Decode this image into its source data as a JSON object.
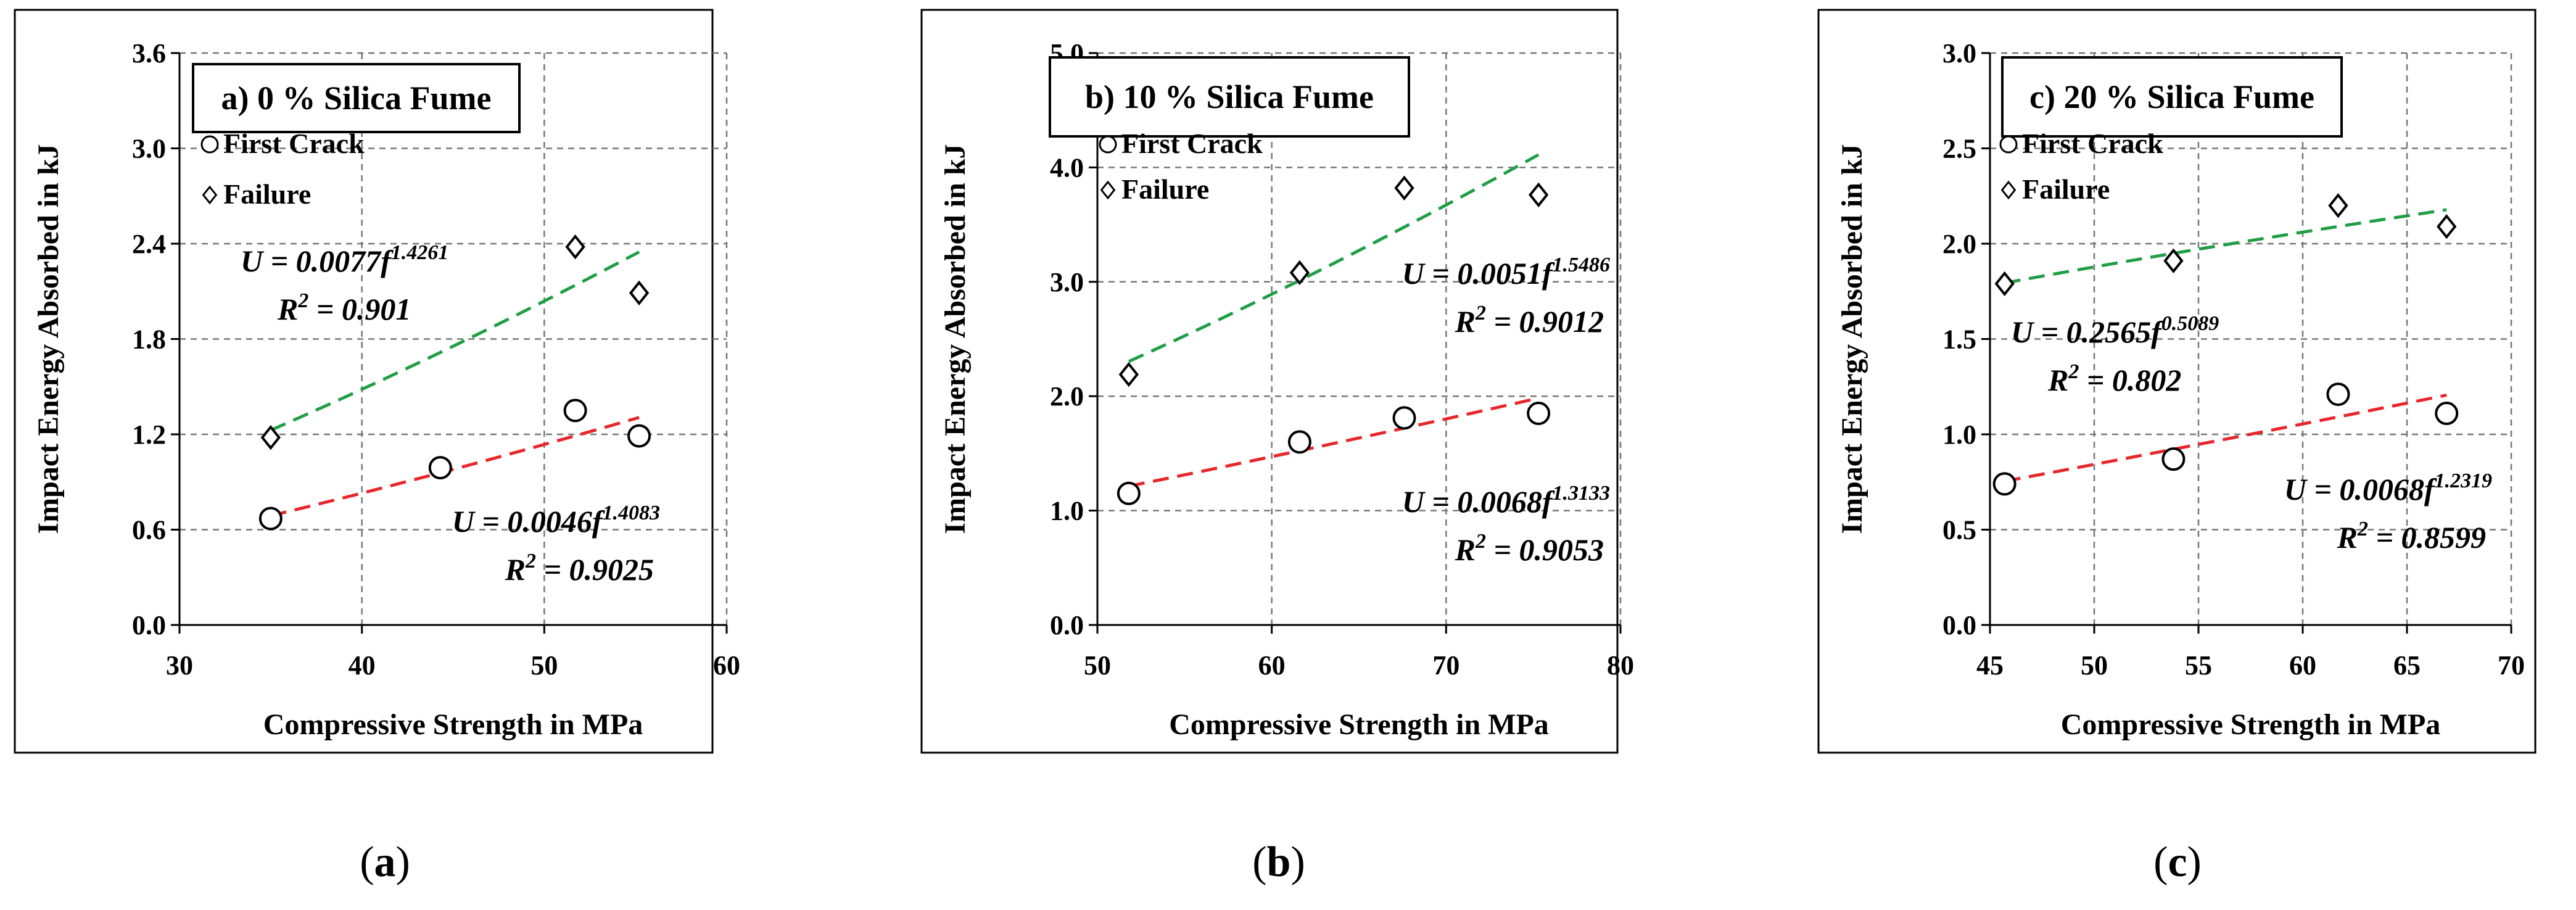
{
  "chart_data": [
    {
      "type": "scatter",
      "title": "a) 0 % Silica Fume",
      "caption": {
        "open": "(",
        "letter": "a",
        "close": ")"
      },
      "xlabel": "Compressive Strength in MPa",
      "ylabel": "Impact Energy Absorbed in kJ",
      "xlim": [
        30,
        60
      ],
      "ylim": [
        0,
        3.6
      ],
      "xticks": [
        "30",
        "40",
        "50",
        "60"
      ],
      "yticks": [
        "0.0",
        "0.6",
        "1.2",
        "1.8",
        "2.4",
        "3.0",
        "3.6"
      ],
      "grid": true,
      "legend_position": "top-left",
      "series": [
        {
          "name": "First Crack",
          "marker": "circle",
          "trend_color": "#e8262a",
          "x": [
            35,
            44.3,
            51.7,
            55.2
          ],
          "y": [
            0.67,
            0.99,
            1.35,
            1.19
          ],
          "trend": {
            "coef": 0.0046,
            "exp": 1.4083,
            "x_range": [
              35,
              55.2
            ],
            "equation": {
              "lhs": "U = 0.0046f",
              "exp": "1.4083",
              "r2_label": "R",
              "r2_sup": "2",
              "r2_value": " = 0.9025"
            }
          }
        },
        {
          "name": "Failure",
          "marker": "diamond",
          "trend_color": "#1f9e45",
          "x": [
            35,
            51.7,
            55.2
          ],
          "y": [
            1.18,
            2.38,
            2.09
          ],
          "trend": {
            "coef": 0.0077,
            "exp": 1.4261,
            "x_range": [
              35,
              55.2
            ],
            "equation": {
              "lhs": "U = 0.0077f",
              "exp": "1.4261",
              "r2_label": "R",
              "r2_sup": "2",
              "r2_value": " = 0.901"
            }
          }
        }
      ]
    },
    {
      "type": "scatter",
      "title": "b) 10 % Silica Fume",
      "caption": {
        "open": "(",
        "letter": "b",
        "close": ")"
      },
      "xlabel": "Compressive Strength in MPa",
      "ylabel": "Impact Energy Absorbed in kJ",
      "xlim": [
        50,
        80
      ],
      "ylim": [
        0,
        5.0
      ],
      "xticks": [
        "50",
        "60",
        "70",
        "80"
      ],
      "yticks": [
        "0.0",
        "1.0",
        "2.0",
        "3.0",
        "4.0",
        "5.0"
      ],
      "grid": true,
      "legend_position": "top-left",
      "series": [
        {
          "name": "First Crack",
          "marker": "circle",
          "trend_color": "#e8262a",
          "x": [
            51.8,
            61.6,
            67.6,
            75.3
          ],
          "y": [
            1.15,
            1.6,
            1.81,
            1.85
          ],
          "trend": {
            "coef": 0.0068,
            "exp": 1.3133,
            "x_range": [
              51.8,
              75.3
            ],
            "equation": {
              "lhs": "U = 0.0068f",
              "exp": "1.3133",
              "r2_label": "R",
              "r2_sup": "2",
              "r2_value": " = 0.9053"
            }
          }
        },
        {
          "name": "Failure",
          "marker": "diamond",
          "trend_color": "#1f9e45",
          "x": [
            51.8,
            61.6,
            67.6,
            75.3
          ],
          "y": [
            2.19,
            3.08,
            3.82,
            3.76
          ],
          "trend": {
            "coef": 0.0051,
            "exp": 1.5486,
            "x_range": [
              51.8,
              75.3
            ],
            "equation": {
              "lhs": "U = 0.0051f",
              "exp": "1.5486",
              "r2_label": "R",
              "r2_sup": "2",
              "r2_value": " = 0.9012"
            }
          }
        }
      ]
    },
    {
      "type": "scatter",
      "title": "c) 20 % Silica Fume",
      "caption": {
        "open": "(",
        "letter": "c",
        "close": ")"
      },
      "xlabel": "Compressive Strength in MPa",
      "ylabel": "Impact Energy Absorbed in kJ",
      "xlim": [
        45,
        70
      ],
      "ylim": [
        0,
        3.0
      ],
      "xticks": [
        "45",
        "50",
        "55",
        "60",
        "65",
        "70"
      ],
      "yticks": [
        "0.0",
        "0.5",
        "1.0",
        "1.5",
        "2.0",
        "2.5",
        "3.0"
      ],
      "grid": true,
      "legend_position": "top-left",
      "series": [
        {
          "name": "First Crack",
          "marker": "circle",
          "trend_color": "#e8262a",
          "x": [
            45.7,
            53.8,
            61.7,
            66.9
          ],
          "y": [
            0.74,
            0.87,
            1.21,
            1.11
          ],
          "trend": {
            "coef": 0.0068,
            "exp": 1.2319,
            "x_range": [
              45.7,
              66.9
            ],
            "equation": {
              "lhs": "U = 0.0068f",
              "exp": "1.2319",
              "r2_label": "R",
              "r2_sup": "2",
              "r2_value": " = 0.8599"
            }
          }
        },
        {
          "name": "Failure",
          "marker": "diamond",
          "trend_color": "#1f9e45",
          "x": [
            45.7,
            53.8,
            61.7,
            66.9
          ],
          "y": [
            1.79,
            1.91,
            2.2,
            2.09
          ],
          "trend": {
            "coef": 0.2565,
            "exp": 0.5089,
            "x_range": [
              45.7,
              66.9
            ],
            "equation": {
              "lhs": "U = 0.2565f",
              "exp": "0.5089",
              "r2_label": "R",
              "r2_sup": "2",
              "r2_value": " = 0.802"
            }
          }
        }
      ]
    }
  ]
}
